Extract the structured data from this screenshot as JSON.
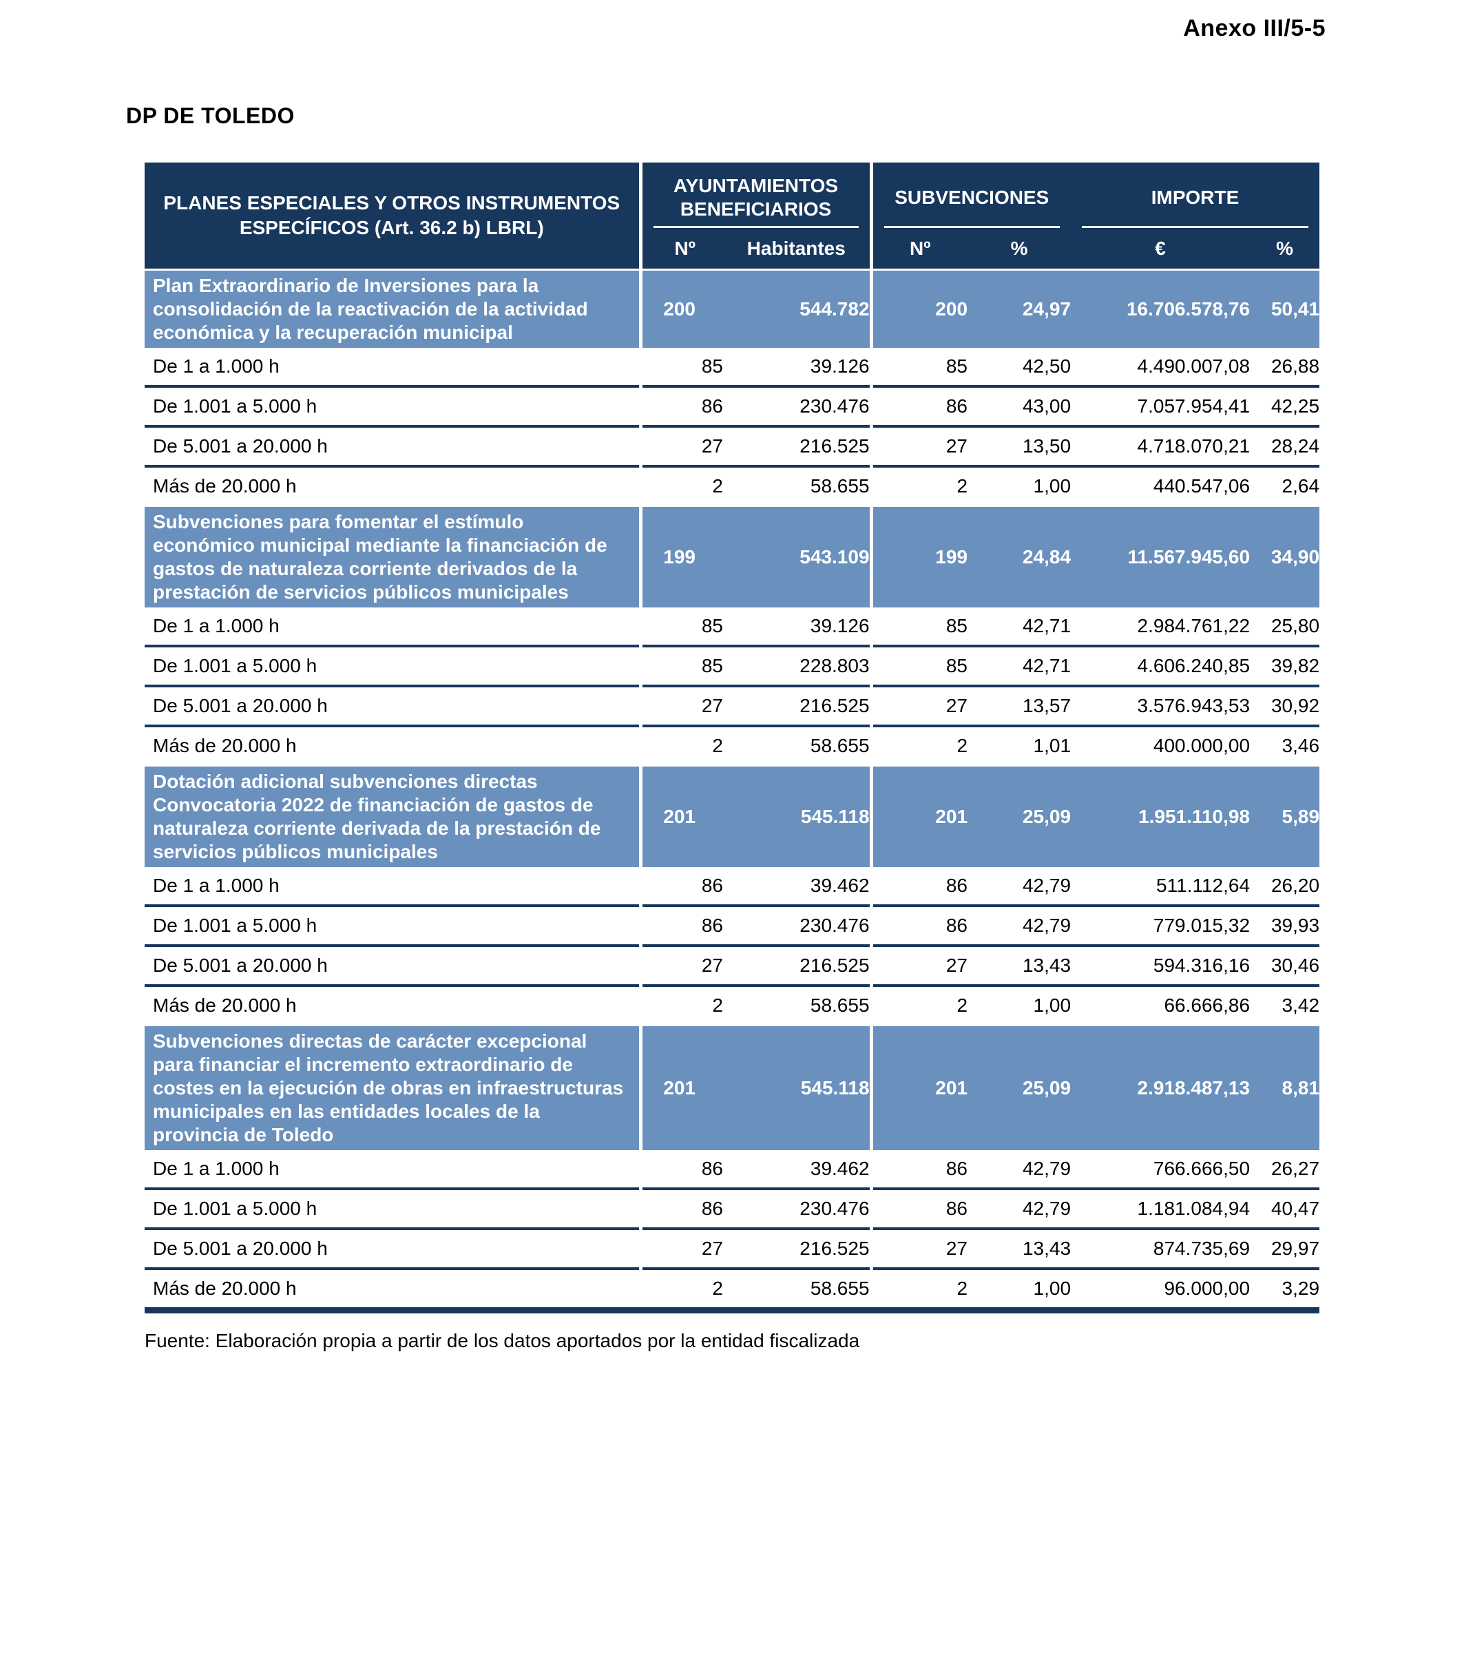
{
  "page": {
    "annex_label": "Anexo III/5-5",
    "title": "DP DE TOLEDO",
    "source_note": "Fuente: Elaboración propia a partir de los datos aportados por la entidad fiscalizada"
  },
  "colors": {
    "header_navy": "#17375D",
    "band_blue": "#6A90BD"
  },
  "table": {
    "header": {
      "main_column": "PLANES ESPECIALES Y OTROS INSTRUMENTOS ESPECÍFICOS (Art. 36.2 b) LBRL)",
      "groups": [
        {
          "label": "AYUNTAMIENTOS BENEFICIARIOS"
        },
        {
          "label": "SUBVENCIONES"
        },
        {
          "label": "IMPORTE"
        }
      ],
      "subheaders": [
        "Nº",
        "Habitantes",
        "Nº",
        "%",
        "€",
        "%"
      ]
    },
    "sections": [
      {
        "label": "Plan Extraordinario de Inversiones para la consolidación de la reactivación de la actividad económica y la recuperación municipal",
        "values": [
          "200",
          "544.782",
          "200",
          "24,97",
          "16.706.578,76",
          "50,41"
        ],
        "rows": [
          {
            "label": "De 1 a 1.000 h",
            "values": [
              "85",
              "39.126",
              "85",
              "42,50",
              "4.490.007,08",
              "26,88"
            ]
          },
          {
            "label": "De 1.001 a 5.000 h",
            "values": [
              "86",
              "230.476",
              "86",
              "43,00",
              "7.057.954,41",
              "42,25"
            ]
          },
          {
            "label": "De 5.001 a 20.000 h",
            "values": [
              "27",
              "216.525",
              "27",
              "13,50",
              "4.718.070,21",
              "28,24"
            ]
          },
          {
            "label": "Más de 20.000 h",
            "values": [
              "2",
              "58.655",
              "2",
              "1,00",
              "440.547,06",
              "2,64"
            ]
          }
        ]
      },
      {
        "label": "Subvenciones para fomentar el estímulo económico municipal mediante la financiación de gastos de naturaleza corriente derivados de la prestación de servicios públicos municipales",
        "values": [
          "199",
          "543.109",
          "199",
          "24,84",
          "11.567.945,60",
          "34,90"
        ],
        "rows": [
          {
            "label": "De 1 a 1.000 h",
            "values": [
              "85",
              "39.126",
              "85",
              "42,71",
              "2.984.761,22",
              "25,80"
            ]
          },
          {
            "label": "De 1.001 a 5.000 h",
            "values": [
              "85",
              "228.803",
              "85",
              "42,71",
              "4.606.240,85",
              "39,82"
            ]
          },
          {
            "label": "De 5.001 a 20.000 h",
            "values": [
              "27",
              "216.525",
              "27",
              "13,57",
              "3.576.943,53",
              "30,92"
            ]
          },
          {
            "label": "Más de 20.000 h",
            "values": [
              "2",
              "58.655",
              "2",
              "1,01",
              "400.000,00",
              "3,46"
            ]
          }
        ]
      },
      {
        "label": "Dotación adicional subvenciones directas Convocatoria 2022 de financiación de gastos de naturaleza corriente derivada de la prestación de servicios públicos municipales",
        "values": [
          "201",
          "545.118",
          "201",
          "25,09",
          "1.951.110,98",
          "5,89"
        ],
        "rows": [
          {
            "label": "De 1 a 1.000 h",
            "values": [
              "86",
              "39.462",
              "86",
              "42,79",
              "511.112,64",
              "26,20"
            ]
          },
          {
            "label": "De 1.001 a 5.000 h",
            "values": [
              "86",
              "230.476",
              "86",
              "42,79",
              "779.015,32",
              "39,93"
            ]
          },
          {
            "label": "De 5.001 a 20.000 h",
            "values": [
              "27",
              "216.525",
              "27",
              "13,43",
              "594.316,16",
              "30,46"
            ]
          },
          {
            "label": "Más de 20.000 h",
            "values": [
              "2",
              "58.655",
              "2",
              "1,00",
              "66.666,86",
              "3,42"
            ]
          }
        ]
      },
      {
        "label": "Subvenciones directas de carácter excepcional para financiar el incremento extraordinario de costes en la ejecución de obras en infraestructuras municipales en las entidades locales de la provincia de Toledo",
        "values": [
          "201",
          "545.118",
          "201",
          "25,09",
          "2.918.487,13",
          "8,81"
        ],
        "rows": [
          {
            "label": "De 1 a 1.000 h",
            "values": [
              "86",
              "39.462",
              "86",
              "42,79",
              "766.666,50",
              "26,27"
            ]
          },
          {
            "label": "De 1.001 a 5.000 h",
            "values": [
              "86",
              "230.476",
              "86",
              "42,79",
              "1.181.084,94",
              "40,47"
            ]
          },
          {
            "label": "De 5.001 a 20.000 h",
            "values": [
              "27",
              "216.525",
              "27",
              "13,43",
              "874.735,69",
              "29,97"
            ]
          },
          {
            "label": "Más de 20.000 h",
            "values": [
              "2",
              "58.655",
              "2",
              "1,00",
              "96.000,00",
              "3,29"
            ]
          }
        ]
      }
    ]
  }
}
